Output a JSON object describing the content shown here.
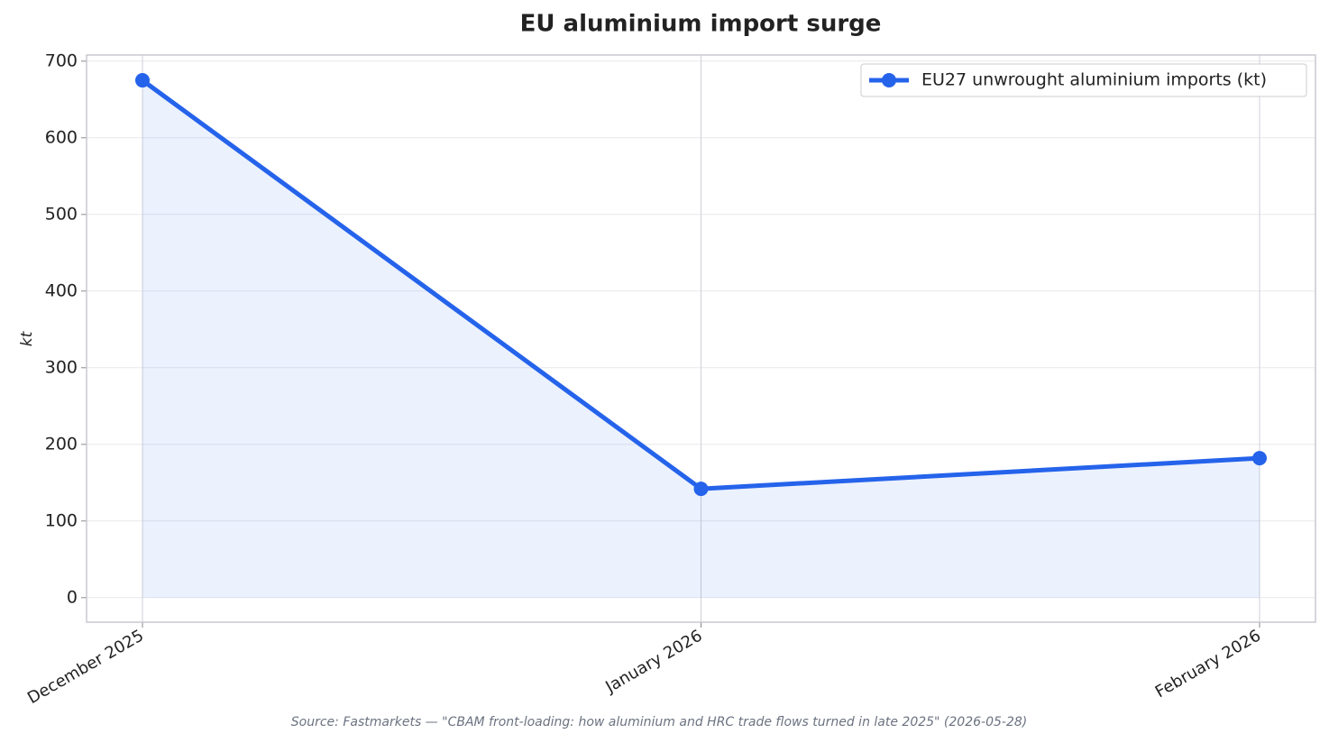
{
  "chart_data": {
    "type": "line",
    "title": "EU aluminium import surge",
    "categories": [
      "December 2025",
      "January 2026",
      "February 2026"
    ],
    "series": [
      {
        "name": "EU27 unwrought aluminium imports (kt)",
        "color": "#2563eb",
        "values": [
          675,
          142,
          182
        ]
      }
    ],
    "ylabel": "kt",
    "ylim": [
      -32,
      708
    ],
    "yticks": [
      0,
      100,
      200,
      300,
      400,
      500,
      600,
      700
    ],
    "grid": true,
    "area": true,
    "legend": "upper right",
    "source": "Source: Fastmarkets — \"CBAM front-loading: how aluminium and HRC trade flows turned in late 2025\" (2026-05-28)"
  }
}
